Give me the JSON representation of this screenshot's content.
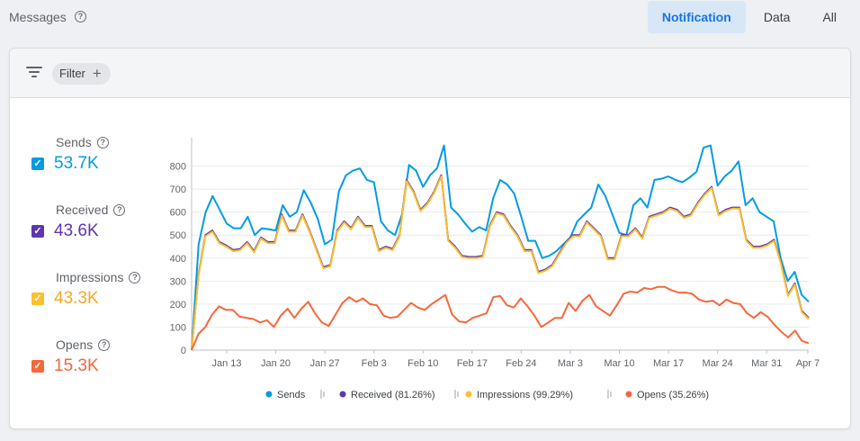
{
  "header": {
    "title": "Messages",
    "tabs": [
      {
        "label": "Notification",
        "active": true
      },
      {
        "label": "Data",
        "active": false
      },
      {
        "label": "All",
        "active": false
      }
    ]
  },
  "filter": {
    "label": "Filter",
    "add_icon": "plus-icon"
  },
  "metrics": [
    {
      "label": "Sends",
      "value": "53.7K",
      "color": "#039be5",
      "checked": true
    },
    {
      "label": "Received",
      "value": "43.6K",
      "color": "#5e35b1",
      "checked": true
    },
    {
      "label": "Impressions",
      "value": "43.3K",
      "color": "#fbc02d",
      "checked": true
    },
    {
      "label": "Opens",
      "value": "15.3K",
      "color": "#f4683c",
      "checked": true
    }
  ],
  "legend": [
    {
      "label": "Sends",
      "color": "#039be5"
    },
    {
      "label": "Received (81.26%)",
      "color": "#5e35b1"
    },
    {
      "label": "Impressions (99.29%)",
      "color": "#fbc02d"
    },
    {
      "label": "Opens (35.26%)",
      "color": "#f4683c"
    }
  ],
  "chart_data": {
    "type": "line",
    "y_ticks": [
      0,
      100,
      200,
      300,
      400,
      500,
      600,
      700,
      800
    ],
    "ylim": [
      0,
      900
    ],
    "x_ticks": [
      "Jan 13",
      "Jan 20",
      "Jan 27",
      "Feb 3",
      "Feb 10",
      "Feb 17",
      "Feb 24",
      "Mar 3",
      "Mar 10",
      "Mar 17",
      "Mar 24",
      "Mar 31",
      "Apr 7"
    ],
    "grid": true,
    "series": [
      {
        "name": "Sends",
        "color": "#039be5",
        "values": [
          0,
          460,
          600,
          670,
          610,
          550,
          530,
          530,
          580,
          500,
          530,
          525,
          520,
          630,
          580,
          600,
          695,
          640,
          570,
          460,
          480,
          690,
          760,
          780,
          790,
          740,
          730,
          560,
          520,
          500,
          590,
          805,
          780,
          710,
          760,
          790,
          890,
          620,
          590,
          550,
          515,
          535,
          520,
          660,
          740,
          720,
          680,
          580,
          475,
          475,
          400,
          410,
          430,
          460,
          490,
          560,
          590,
          620,
          720,
          670,
          590,
          510,
          500,
          630,
          660,
          620,
          740,
          745,
          755,
          740,
          730,
          750,
          775,
          880,
          890,
          715,
          755,
          780,
          820,
          630,
          660,
          600,
          580,
          560,
          400,
          300,
          340,
          240,
          210
        ]
      },
      {
        "name": "Received",
        "color": "#5e35b1",
        "values": [
          0,
          330,
          500,
          520,
          470,
          455,
          435,
          440,
          470,
          430,
          490,
          470,
          470,
          590,
          520,
          520,
          590,
          520,
          440,
          360,
          370,
          520,
          560,
          530,
          580,
          540,
          540,
          435,
          450,
          440,
          500,
          740,
          690,
          610,
          640,
          690,
          760,
          480,
          450,
          410,
          405,
          405,
          410,
          540,
          600,
          590,
          540,
          500,
          435,
          435,
          340,
          350,
          370,
          420,
          470,
          500,
          500,
          560,
          530,
          500,
          400,
          400,
          500,
          500,
          530,
          490,
          580,
          590,
          600,
          620,
          610,
          580,
          590,
          640,
          680,
          710,
          590,
          610,
          620,
          620,
          480,
          450,
          450,
          460,
          480,
          380,
          240,
          290,
          170,
          140
        ]
      },
      {
        "name": "Impressions",
        "color": "#fbc02d",
        "values": [
          0,
          325,
          495,
          515,
          465,
          450,
          430,
          435,
          465,
          425,
          485,
          465,
          465,
          585,
          515,
          515,
          585,
          515,
          435,
          355,
          365,
          515,
          555,
          525,
          575,
          535,
          535,
          430,
          445,
          435,
          495,
          735,
          685,
          605,
          635,
          685,
          755,
          475,
          445,
          405,
          400,
          400,
          405,
          535,
          595,
          585,
          535,
          495,
          430,
          430,
          335,
          345,
          365,
          415,
          465,
          495,
          495,
          555,
          525,
          495,
          395,
          395,
          495,
          495,
          525,
          485,
          575,
          585,
          595,
          615,
          605,
          575,
          585,
          635,
          675,
          705,
          585,
          605,
          615,
          615,
          475,
          445,
          445,
          455,
          475,
          375,
          235,
          285,
          165,
          135
        ]
      },
      {
        "name": "Opens",
        "color": "#f4683c",
        "values": [
          0,
          70,
          100,
          155,
          190,
          175,
          175,
          145,
          140,
          135,
          120,
          130,
          100,
          150,
          180,
          140,
          180,
          210,
          160,
          120,
          105,
          155,
          205,
          230,
          210,
          225,
          200,
          195,
          150,
          140,
          145,
          175,
          205,
          185,
          175,
          200,
          220,
          240,
          155,
          125,
          120,
          140,
          150,
          160,
          230,
          235,
          195,
          185,
          225,
          190,
          150,
          100,
          120,
          140,
          140,
          205,
          170,
          215,
          240,
          190,
          170,
          150,
          195,
          245,
          255,
          250,
          270,
          265,
          275,
          275,
          260,
          250,
          250,
          245,
          220,
          210,
          215,
          195,
          220,
          205,
          200,
          160,
          140,
          165,
          145,
          110,
          80,
          55,
          85,
          40,
          30
        ]
      }
    ]
  }
}
